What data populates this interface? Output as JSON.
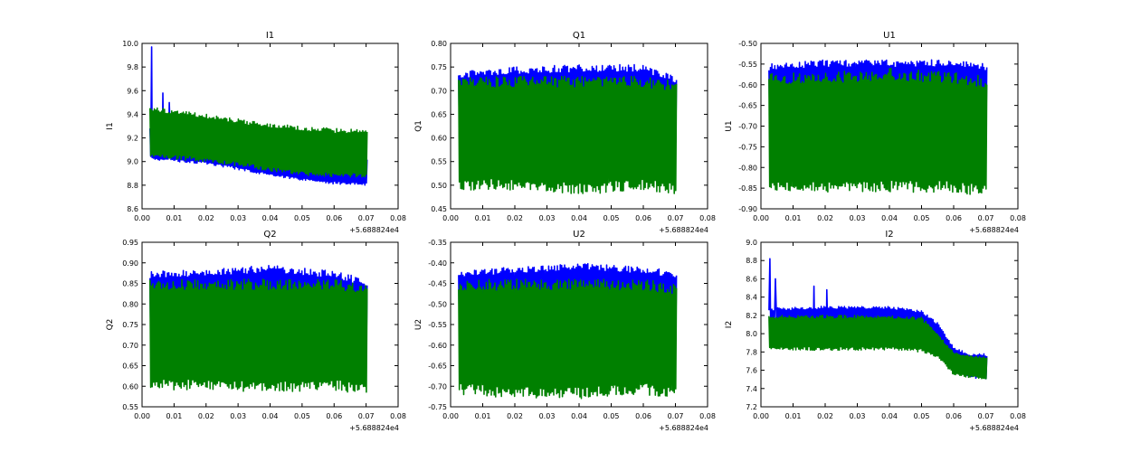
{
  "offset_label": "+5.688824e4",
  "chart_data": [
    {
      "type": "line",
      "title": "I1",
      "ylabel": "I1",
      "xlabel": "",
      "xlim": [
        0,
        0.08
      ],
      "ylim": [
        8.6,
        10.0
      ],
      "xticks": [
        "0.00",
        "0.01",
        "0.02",
        "0.03",
        "0.04",
        "0.05",
        "0.06",
        "0.07",
        "0.08"
      ],
      "yticks": [
        "8.6",
        "8.8",
        "9.0",
        "9.2",
        "9.4",
        "9.6",
        "9.8",
        "10.0"
      ],
      "x_range": [
        0.0025,
        0.0703
      ],
      "series": [
        {
          "name": "series-1",
          "color": "#0000ff",
          "x": [
            0.0025,
            0.01,
            0.02,
            0.03,
            0.04,
            0.05,
            0.06,
            0.0703
          ],
          "low": [
            9.02,
            9.0,
            8.98,
            8.93,
            8.88,
            8.84,
            8.81,
            8.8
          ],
          "high": [
            9.28,
            9.25,
            9.22,
            9.17,
            9.12,
            9.08,
            9.05,
            9.02
          ],
          "spikes": [
            {
              "x": 0.003,
              "y": 9.97
            },
            {
              "x": 0.0065,
              "y": 9.58
            },
            {
              "x": 0.0085,
              "y": 9.5
            }
          ]
        },
        {
          "name": "series-2",
          "color": "#008000",
          "x": [
            0.0025,
            0.01,
            0.02,
            0.03,
            0.04,
            0.05,
            0.06,
            0.0703
          ],
          "low": [
            9.04,
            9.02,
            9.0,
            8.96,
            8.92,
            8.88,
            8.87,
            8.86
          ],
          "high": [
            9.46,
            9.44,
            9.4,
            9.36,
            9.32,
            9.3,
            9.28,
            9.27
          ],
          "spikes": []
        }
      ]
    },
    {
      "type": "line",
      "title": "Q1",
      "ylabel": "Q1",
      "xlabel": "",
      "xlim": [
        0,
        0.08
      ],
      "ylim": [
        0.45,
        0.8
      ],
      "xticks": [
        "0.00",
        "0.01",
        "0.02",
        "0.03",
        "0.04",
        "0.05",
        "0.06",
        "0.07",
        "0.08"
      ],
      "yticks": [
        "0.45",
        "0.50",
        "0.55",
        "0.60",
        "0.65",
        "0.70",
        "0.75",
        "0.80"
      ],
      "x_range": [
        0.0025,
        0.0703
      ],
      "series": [
        {
          "name": "series-1",
          "color": "#0000ff",
          "x": [
            0.0025,
            0.02,
            0.04,
            0.06,
            0.0703
          ],
          "low": [
            0.59,
            0.59,
            0.59,
            0.59,
            0.58
          ],
          "high": [
            0.74,
            0.75,
            0.755,
            0.755,
            0.73
          ],
          "spikes": []
        },
        {
          "name": "series-2",
          "color": "#008000",
          "x": [
            0.0025,
            0.02,
            0.04,
            0.06,
            0.0703
          ],
          "low": [
            0.49,
            0.49,
            0.48,
            0.49,
            0.48
          ],
          "high": [
            0.73,
            0.73,
            0.73,
            0.73,
            0.72
          ],
          "spikes": []
        }
      ]
    },
    {
      "type": "line",
      "title": "U1",
      "ylabel": "U1",
      "xlabel": "",
      "xlim": [
        0,
        0.08
      ],
      "ylim": [
        -0.9,
        -0.5
      ],
      "xticks": [
        "0.00",
        "0.01",
        "0.02",
        "0.03",
        "0.04",
        "0.05",
        "0.06",
        "0.07",
        "0.08"
      ],
      "yticks": [
        "-0.90",
        "-0.85",
        "-0.80",
        "-0.75",
        "-0.70",
        "-0.65",
        "-0.60",
        "-0.55",
        "-0.50"
      ],
      "x_range": [
        0.0025,
        0.0703
      ],
      "series": [
        {
          "name": "series-1",
          "color": "#0000ff",
          "x": [
            0.0025,
            0.02,
            0.04,
            0.06,
            0.0703
          ],
          "low": [
            -0.72,
            -0.72,
            -0.72,
            -0.72,
            -0.73
          ],
          "high": [
            -0.55,
            -0.54,
            -0.54,
            -0.54,
            -0.55
          ],
          "spikes": []
        },
        {
          "name": "series-2",
          "color": "#008000",
          "x": [
            0.0025,
            0.02,
            0.04,
            0.06,
            0.0703
          ],
          "low": [
            -0.86,
            -0.86,
            -0.86,
            -0.86,
            -0.87
          ],
          "high": [
            -0.57,
            -0.57,
            -0.56,
            -0.57,
            -0.58
          ],
          "spikes": []
        }
      ]
    },
    {
      "type": "line",
      "title": "Q2",
      "ylabel": "Q2",
      "xlabel": "",
      "xlim": [
        0,
        0.08
      ],
      "ylim": [
        0.55,
        0.95
      ],
      "xticks": [
        "0.00",
        "0.01",
        "0.02",
        "0.03",
        "0.04",
        "0.05",
        "0.06",
        "0.07",
        "0.08"
      ],
      "yticks": [
        "0.55",
        "0.60",
        "0.65",
        "0.70",
        "0.75",
        "0.80",
        "0.85",
        "0.90",
        "0.95"
      ],
      "x_range": [
        0.0025,
        0.0703
      ],
      "series": [
        {
          "name": "series-1",
          "color": "#0000ff",
          "x": [
            0.0025,
            0.02,
            0.04,
            0.06,
            0.0703
          ],
          "low": [
            0.7,
            0.7,
            0.7,
            0.69,
            0.68
          ],
          "high": [
            0.88,
            0.885,
            0.895,
            0.88,
            0.86
          ],
          "spikes": []
        },
        {
          "name": "series-2",
          "color": "#008000",
          "x": [
            0.0025,
            0.02,
            0.04,
            0.06,
            0.0703
          ],
          "low": [
            0.59,
            0.59,
            0.585,
            0.59,
            0.58
          ],
          "high": [
            0.86,
            0.86,
            0.86,
            0.86,
            0.85
          ],
          "spikes": []
        }
      ]
    },
    {
      "type": "line",
      "title": "U2",
      "ylabel": "U2",
      "xlabel": "",
      "xlim": [
        0,
        0.08
      ],
      "ylim": [
        -0.75,
        -0.35
      ],
      "xticks": [
        "0.00",
        "0.01",
        "0.02",
        "0.03",
        "0.04",
        "0.05",
        "0.06",
        "0.07",
        "0.08"
      ],
      "yticks": [
        "-0.75",
        "-0.70",
        "-0.65",
        "-0.60",
        "-0.55",
        "-0.50",
        "-0.45",
        "-0.40",
        "-0.35"
      ],
      "x_range": [
        0.0025,
        0.0703
      ],
      "series": [
        {
          "name": "series-1",
          "color": "#0000ff",
          "x": [
            0.0025,
            0.02,
            0.04,
            0.06,
            0.0703
          ],
          "low": [
            -0.58,
            -0.58,
            -0.58,
            -0.58,
            -0.59
          ],
          "high": [
            -0.42,
            -0.41,
            -0.4,
            -0.41,
            -0.42
          ],
          "spikes": []
        },
        {
          "name": "series-2",
          "color": "#008000",
          "x": [
            0.0025,
            0.02,
            0.04,
            0.06,
            0.0703
          ],
          "low": [
            -0.72,
            -0.73,
            -0.73,
            -0.72,
            -0.73
          ],
          "high": [
            -0.44,
            -0.44,
            -0.44,
            -0.44,
            -0.45
          ],
          "spikes": []
        }
      ]
    },
    {
      "type": "line",
      "title": "I2",
      "ylabel": "I2",
      "xlabel": "",
      "xlim": [
        0,
        0.08
      ],
      "ylim": [
        7.2,
        9.0
      ],
      "xticks": [
        "0.00",
        "0.01",
        "0.02",
        "0.03",
        "0.04",
        "0.05",
        "0.06",
        "0.07",
        "0.08"
      ],
      "yticks": [
        "7.2",
        "7.4",
        "7.6",
        "7.8",
        "8.0",
        "8.2",
        "8.4",
        "8.6",
        "8.8",
        "9.0"
      ],
      "x_range": [
        0.0025,
        0.0703
      ],
      "series": [
        {
          "name": "series-1",
          "color": "#0000ff",
          "x": [
            0.0025,
            0.02,
            0.04,
            0.05,
            0.055,
            0.06,
            0.065,
            0.0703
          ],
          "low": [
            7.95,
            7.96,
            7.97,
            7.96,
            7.85,
            7.62,
            7.52,
            7.5
          ],
          "high": [
            8.28,
            8.3,
            8.3,
            8.25,
            8.12,
            7.85,
            7.78,
            7.78
          ],
          "spikes": [
            {
              "x": 0.0028,
              "y": 8.82
            },
            {
              "x": 0.0045,
              "y": 8.6
            },
            {
              "x": 0.0165,
              "y": 8.52
            },
            {
              "x": 0.0205,
              "y": 8.48
            }
          ]
        },
        {
          "name": "series-2",
          "color": "#008000",
          "x": [
            0.0025,
            0.02,
            0.04,
            0.05,
            0.055,
            0.06,
            0.065,
            0.0703
          ],
          "low": [
            7.82,
            7.82,
            7.82,
            7.8,
            7.74,
            7.55,
            7.52,
            7.5
          ],
          "high": [
            8.2,
            8.2,
            8.2,
            8.18,
            8.0,
            7.8,
            7.76,
            7.75
          ],
          "spikes": []
        }
      ]
    }
  ]
}
